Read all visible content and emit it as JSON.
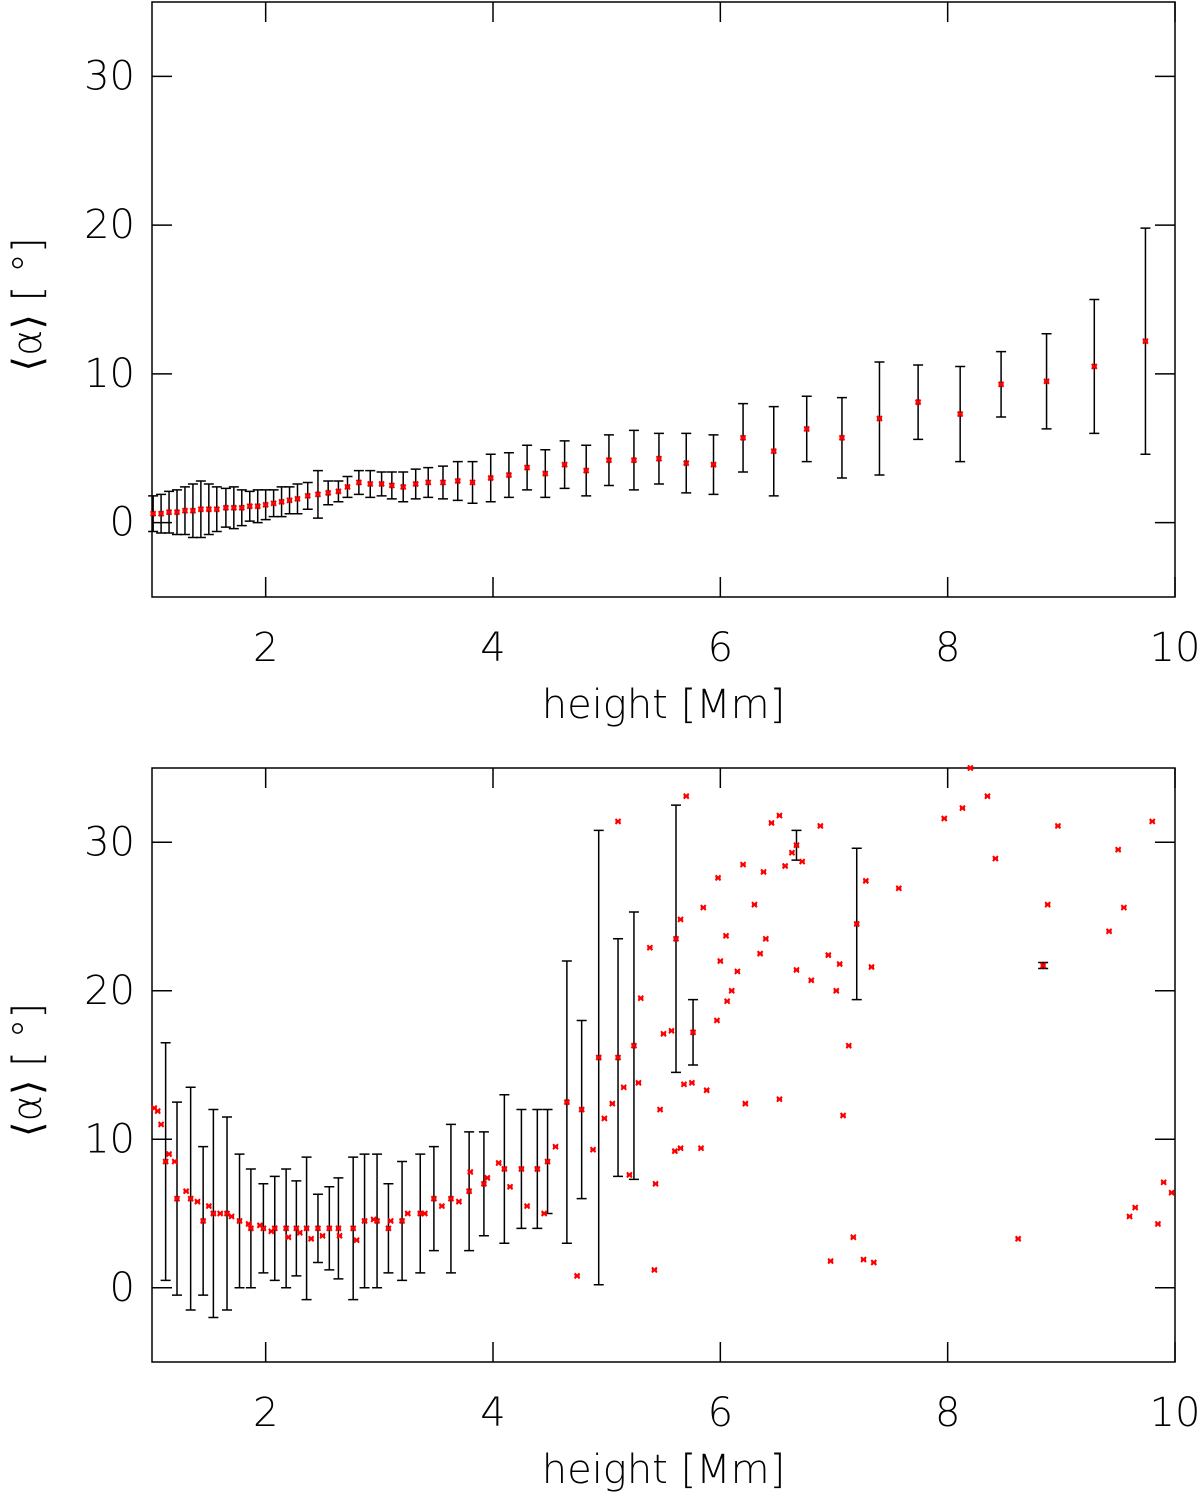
{
  "chart_data": [
    {
      "type": "scatter",
      "xlabel": "height [Mm]",
      "ylabel": "⟨α⟩ [ °]",
      "xlim": [
        1,
        10
      ],
      "ylim": [
        -5,
        35
      ],
      "xticks": [
        2,
        4,
        6,
        8,
        10
      ],
      "yticks": [
        0,
        10,
        20,
        30
      ],
      "series": [
        {
          "color": "#ff0000",
          "error_color": "#000000",
          "x": [
            1.01,
            1.08,
            1.15,
            1.22,
            1.29,
            1.36,
            1.43,
            1.5,
            1.57,
            1.65,
            1.72,
            1.79,
            1.86,
            1.93,
            2.0,
            2.07,
            2.14,
            2.21,
            2.28,
            2.37,
            2.46,
            2.55,
            2.64,
            2.72,
            2.82,
            2.92,
            3.02,
            3.11,
            3.21,
            3.32,
            3.43,
            3.56,
            3.69,
            3.82,
            3.98,
            4.14,
            4.3,
            4.46,
            4.63,
            4.82,
            5.02,
            5.24,
            5.46,
            5.7,
            5.94,
            6.2,
            6.47,
            6.76,
            7.07,
            7.4,
            7.74,
            8.11,
            8.47,
            8.87,
            9.29,
            9.74
          ],
          "values": [
            0.6,
            0.6,
            0.7,
            0.7,
            0.8,
            0.8,
            0.9,
            0.9,
            0.9,
            1.0,
            1.0,
            1.0,
            1.1,
            1.1,
            1.2,
            1.3,
            1.4,
            1.5,
            1.6,
            1.8,
            1.9,
            2.0,
            2.1,
            2.4,
            2.7,
            2.6,
            2.6,
            2.5,
            2.4,
            2.6,
            2.7,
            2.7,
            2.8,
            2.7,
            3.0,
            3.2,
            3.7,
            3.3,
            3.9,
            3.5,
            4.2,
            4.2,
            4.3,
            4.0,
            3.9,
            5.7,
            4.8,
            6.3,
            5.7,
            7.0,
            8.1,
            7.3,
            9.3,
            9.5,
            10.5,
            12.2
          ],
          "errors": [
            1.2,
            1.3,
            1.4,
            1.5,
            1.6,
            1.8,
            1.9,
            1.7,
            1.5,
            1.3,
            1.4,
            1.2,
            1.0,
            1.1,
            1.0,
            0.9,
            1.0,
            0.9,
            1.0,
            0.9,
            1.6,
            0.8,
            0.7,
            0.7,
            0.8,
            0.9,
            0.8,
            0.9,
            1.0,
            1.0,
            1.0,
            1.1,
            1.3,
            1.4,
            1.6,
            1.5,
            1.5,
            1.6,
            1.6,
            1.7,
            1.7,
            2.0,
            1.7,
            2.0,
            2.0,
            2.3,
            3.0,
            2.2,
            2.7,
            3.8,
            2.5,
            3.2,
            2.2,
            3.2,
            4.5,
            7.6
          ]
        }
      ]
    },
    {
      "type": "scatter",
      "xlabel": "height [Mm]",
      "ylabel": "⟨α⟩ [ °]",
      "xlim": [
        1,
        10
      ],
      "ylim": [
        -5,
        35
      ],
      "xticks": [
        2,
        4,
        6,
        8,
        10
      ],
      "yticks": [
        0,
        10,
        20,
        30
      ],
      "series": [
        {
          "color": "#ff0000",
          "error_color": "#000000",
          "x": [
            1.12,
            1.22,
            1.34,
            1.45,
            1.54,
            1.66,
            1.77,
            1.87,
            1.98,
            2.08,
            2.18,
            2.27,
            2.36,
            2.46,
            2.56,
            2.64,
            2.77,
            2.87,
            2.98,
            3.08,
            3.2,
            3.36,
            3.48,
            3.63,
            3.79,
            3.92,
            4.1,
            4.25,
            4.39,
            4.48,
            4.65,
            4.78,
            4.93,
            5.1,
            5.24,
            5.61,
            5.76,
            6.67,
            7.2,
            8.84,
            5.1,
            5.38,
            5.57,
            5.7,
            5.65,
            5.85,
            5.98,
            6.0,
            6.05,
            6.1,
            6.2,
            6.3,
            6.38,
            6.45,
            6.52,
            6.57,
            6.63,
            6.72,
            6.88,
            6.95,
            7.05,
            7.28,
            7.33,
            7.57,
            7.97,
            8.13,
            8.2,
            8.35,
            8.42,
            8.97,
            8.88,
            9.42,
            9.5,
            9.55,
            9.8,
            5.42,
            4.74,
            6.97,
            7.17,
            7.26,
            7.35,
            8.62,
            9.6,
            9.65,
            9.85,
            9.9,
            9.97,
            7.08,
            7.13,
            6.52,
            6.22,
            5.83,
            5.68,
            5.75,
            5.88,
            5.6,
            5.65,
            5.43,
            5.47,
            5.2,
            5.3,
            5.5,
            5.97,
            6.06,
            6.15,
            6.35,
            6.4,
            6.67,
            6.8,
            7.02,
            5.28,
            5.15,
            4.98,
            5.05,
            4.88,
            4.55,
            4.45,
            4.3,
            4.15,
            4.05,
            3.95,
            3.8,
            3.7,
            3.55,
            3.4,
            3.25,
            3.1,
            2.95,
            2.8,
            2.65,
            2.5,
            2.4,
            2.3,
            2.2,
            2.05,
            1.95,
            1.85,
            1.7,
            1.6,
            1.5,
            1.4,
            1.3,
            1.2,
            1.15,
            1.08,
            1.05,
            1.02
          ],
          "values": [
            8.5,
            6.0,
            6.0,
            4.5,
            5,
            5,
            4.5,
            4,
            4,
            4,
            4,
            4,
            4,
            4,
            4,
            4,
            4,
            4.5,
            4.5,
            4,
            4.5,
            5,
            6,
            6,
            6.5,
            7,
            8,
            8,
            8,
            8.5,
            12.5,
            12,
            15.5,
            15.5,
            16.3,
            23.5,
            17.2,
            29.8,
            24.5,
            21.7,
            31.4,
            22.9,
            17.3,
            33.1,
            24.8,
            25.6,
            27.6,
            22,
            23.7,
            20,
            28.5,
            25.8,
            28,
            31.3,
            31.8,
            28.4,
            29.3,
            28.7,
            31.1,
            22.4,
            21.8,
            27.4,
            21.6,
            26.9,
            31.6,
            32.3,
            35,
            33.1,
            28.9,
            31.1,
            25.8,
            24,
            29.5,
            25.6,
            31.4,
            1.2,
            0.8,
            1.8,
            3.4,
            1.9,
            1.7,
            3.3,
            4.8,
            5.4,
            4.3,
            7.1,
            6.4,
            11.6,
            16.3,
            12.7,
            12.4,
            9.4,
            13.7,
            13.8,
            13.3,
            9.2,
            9.4,
            7,
            12,
            7.6,
            19.5,
            17.1,
            18,
            19.3,
            21.3,
            22.5,
            23.5,
            21.4,
            20.7,
            20,
            13.8,
            13.5,
            11.4,
            12.4,
            9.3,
            9.5,
            5,
            5.5,
            6.8,
            8.4,
            7.4,
            7.8,
            5.8,
            5.5,
            5,
            5,
            4.5,
            4.6,
            3.2,
            3.5,
            3.5,
            3.3,
            3.7,
            3.4,
            3.8,
            4.2,
            4.3,
            4.8,
            5,
            5.5,
            5.8,
            6.5,
            8.5,
            9,
            11,
            11.9,
            12.1
          ],
          "errors": [
            8,
            6.5,
            7.5,
            5,
            7,
            6.5,
            4.5,
            4,
            3,
            3.5,
            4,
            3.2,
            4.8,
            2.3,
            2.8,
            3.4,
            4.8,
            4.5,
            4.5,
            3,
            4,
            4,
            3.5,
            5,
            4,
            3.5,
            5,
            4,
            4,
            3.5,
            9.5,
            6,
            15.3,
            8,
            9,
            9,
            2.2,
            1,
            5.1,
            0.2,
            null,
            null,
            null,
            null,
            null,
            null,
            null,
            null,
            null,
            null,
            null,
            null,
            null,
            null,
            null,
            null,
            null,
            null,
            null,
            null,
            null,
            null,
            null,
            null,
            null,
            null,
            null,
            null,
            null,
            null,
            null,
            null,
            null,
            null,
            null,
            null,
            null,
            null,
            null,
            null,
            null,
            null,
            null,
            null,
            null,
            null,
            null,
            null,
            null,
            null,
            null,
            null,
            null,
            null,
            null,
            null,
            null,
            null,
            null,
            null,
            null,
            null,
            null,
            null,
            null,
            null,
            null,
            null,
            null,
            null,
            null,
            null,
            null,
            null,
            null,
            null,
            null,
            null,
            null,
            null,
            null,
            null,
            null,
            null,
            null,
            null,
            null,
            null,
            null,
            null,
            null,
            null,
            null,
            null,
            null,
            null,
            null,
            null,
            null,
            null,
            null,
            null,
            null,
            null,
            null,
            null,
            null
          ]
        }
      ]
    }
  ]
}
